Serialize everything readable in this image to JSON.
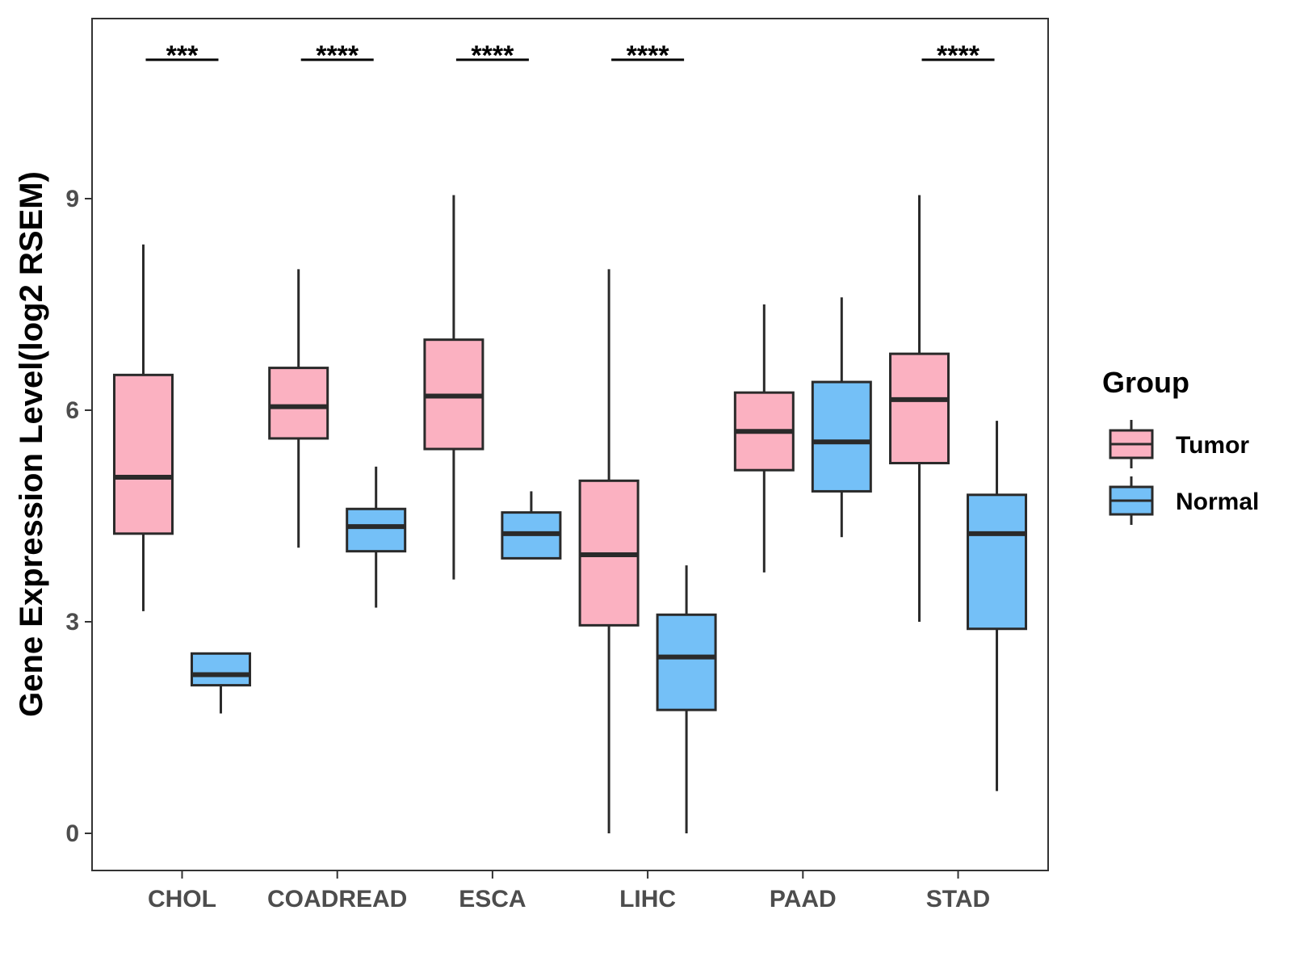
{
  "chart_data": {
    "type": "boxplot",
    "title": "",
    "xlabel": "",
    "ylabel": "Gene Expression Level(log2 RSEM)",
    "ylim": [
      -0.5,
      11.6
    ],
    "yticks": [
      0,
      3,
      6,
      9
    ],
    "categories": [
      "CHOL",
      "COADREAD",
      "ESCA",
      "LIHC",
      "PAAD",
      "STAD"
    ],
    "series": [
      {
        "name": "Tumor",
        "color": "#FBB1C1",
        "boxes": [
          {
            "whisker_low": 3.15,
            "q1": 4.25,
            "median": 5.05,
            "q3": 6.5,
            "whisker_high": 8.35
          },
          {
            "whisker_low": 4.05,
            "q1": 5.6,
            "median": 6.05,
            "q3": 6.6,
            "whisker_high": 8.0
          },
          {
            "whisker_low": 3.6,
            "q1": 5.45,
            "median": 6.2,
            "q3": 7.0,
            "whisker_high": 9.05
          },
          {
            "whisker_low": 0.0,
            "q1": 2.95,
            "median": 3.95,
            "q3": 5.0,
            "whisker_high": 8.0
          },
          {
            "whisker_low": 3.7,
            "q1": 5.15,
            "median": 5.7,
            "q3": 6.25,
            "whisker_high": 7.5
          },
          {
            "whisker_low": 3.0,
            "q1": 5.25,
            "median": 6.15,
            "q3": 6.8,
            "whisker_high": 9.05
          }
        ]
      },
      {
        "name": "Normal",
        "color": "#74C0F7",
        "boxes": [
          {
            "whisker_low": 1.7,
            "q1": 2.1,
            "median": 2.25,
            "q3": 2.55,
            "whisker_high": 2.55
          },
          {
            "whisker_low": 3.2,
            "q1": 4.0,
            "median": 4.35,
            "q3": 4.6,
            "whisker_high": 5.2
          },
          {
            "whisker_low": 3.9,
            "q1": 3.9,
            "median": 4.25,
            "q3": 4.55,
            "whisker_high": 4.85
          },
          {
            "whisker_low": 0.0,
            "q1": 1.75,
            "median": 2.5,
            "q3": 3.1,
            "whisker_high": 3.8
          },
          {
            "whisker_low": 4.2,
            "q1": 4.85,
            "median": 5.55,
            "q3": 6.4,
            "whisker_high": 7.6
          },
          {
            "whisker_low": 0.6,
            "q1": 2.9,
            "median": 4.25,
            "q3": 4.8,
            "whisker_high": 5.85
          }
        ]
      }
    ],
    "significance": [
      "***",
      "****",
      "****",
      "****",
      "",
      "****"
    ],
    "legend": {
      "title": "Group",
      "position": "right",
      "entries": [
        "Tumor",
        "Normal"
      ]
    },
    "grid": false
  }
}
